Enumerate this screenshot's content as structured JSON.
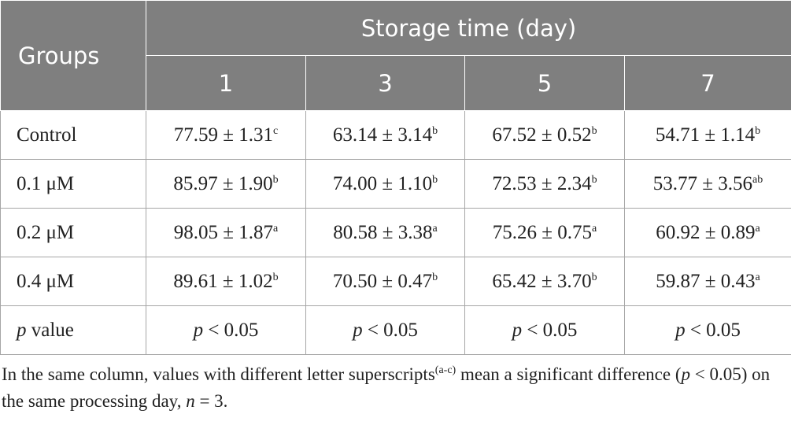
{
  "table": {
    "header": {
      "groups": "Groups",
      "span_title": "Storage time (day)",
      "days": [
        "1",
        "3",
        "5",
        "7"
      ]
    },
    "rows": [
      [
        [
          {
            "text": "Control"
          }
        ],
        [
          {
            "text": "77.59 ± 1.31"
          },
          {
            "text": "c",
            "style": "sup"
          }
        ],
        [
          {
            "text": "63.14 ± 3.14"
          },
          {
            "text": "b",
            "style": "sup"
          }
        ],
        [
          {
            "text": "67.52 ± 0.52"
          },
          {
            "text": "b",
            "style": "sup"
          }
        ],
        [
          {
            "text": "54.71 ± 1.14"
          },
          {
            "text": "b",
            "style": "sup"
          }
        ]
      ],
      [
        [
          {
            "text": "0.1 μM"
          }
        ],
        [
          {
            "text": "85.97 ± 1.90"
          },
          {
            "text": "b",
            "style": "sup"
          }
        ],
        [
          {
            "text": "74.00 ± 1.10"
          },
          {
            "text": "b",
            "style": "sup"
          }
        ],
        [
          {
            "text": "72.53 ± 2.34"
          },
          {
            "text": "b",
            "style": "sup"
          }
        ],
        [
          {
            "text": "53.77 ± 3.56"
          },
          {
            "text": "ab",
            "style": "sup"
          }
        ]
      ],
      [
        [
          {
            "text": "0.2 μM"
          }
        ],
        [
          {
            "text": "98.05 ± 1.87"
          },
          {
            "text": "a",
            "style": "sup"
          }
        ],
        [
          {
            "text": "80.58 ± 3.38"
          },
          {
            "text": "a",
            "style": "sup"
          }
        ],
        [
          {
            "text": "75.26 ± 0.75"
          },
          {
            "text": "a",
            "style": "sup"
          }
        ],
        [
          {
            "text": "60.92 ± 0.89"
          },
          {
            "text": "a",
            "style": "sup"
          }
        ]
      ],
      [
        [
          {
            "text": "0.4 μM"
          }
        ],
        [
          {
            "text": "89.61 ± 1.02"
          },
          {
            "text": "b",
            "style": "sup"
          }
        ],
        [
          {
            "text": "70.50 ± 0.47"
          },
          {
            "text": "b",
            "style": "sup"
          }
        ],
        [
          {
            "text": "65.42 ± 3.70"
          },
          {
            "text": "b",
            "style": "sup"
          }
        ],
        [
          {
            "text": "59.87 ± 0.43"
          },
          {
            "text": "a",
            "style": "sup"
          }
        ]
      ],
      [
        [
          {
            "text": "p",
            "style": "italic"
          },
          {
            "text": " value"
          }
        ],
        [
          {
            "text": "p",
            "style": "italic"
          },
          {
            "text": " < 0.05"
          }
        ],
        [
          {
            "text": "p",
            "style": "italic"
          },
          {
            "text": " < 0.05"
          }
        ],
        [
          {
            "text": "p",
            "style": "italic"
          },
          {
            "text": " < 0.05"
          }
        ],
        [
          {
            "text": "p",
            "style": "italic"
          },
          {
            "text": " < 0.05"
          }
        ]
      ]
    ]
  },
  "footnote": [
    {
      "text": "In the same column, values with different letter superscripts"
    },
    {
      "text": "(a-c)",
      "style": "sup"
    },
    {
      "text": " mean a significant difference ("
    },
    {
      "text": "p",
      "style": "italic"
    },
    {
      "text": " < 0.05) on the same processing day, "
    },
    {
      "text": "n",
      "style": "italic"
    },
    {
      "text": " = 3."
    }
  ]
}
